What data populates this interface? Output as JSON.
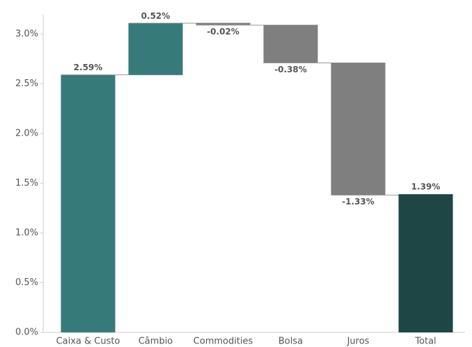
{
  "chart_data": {
    "type": "waterfall",
    "categories": [
      "Caixa & Custo",
      "Câmbio",
      "Commodities",
      "Bolsa",
      "Juros",
      "Total"
    ],
    "values": [
      2.59,
      0.52,
      -0.02,
      -0.38,
      -1.33,
      1.39
    ],
    "value_labels": [
      "2.59%",
      "0.52%",
      "-0.02%",
      "-0.38%",
      "-1.33%",
      "1.39%"
    ],
    "is_total": [
      false,
      false,
      false,
      false,
      false,
      true
    ],
    "colors": {
      "increase": "#367b79",
      "decrease": "#7f7f7f",
      "total": "#1e4645"
    },
    "ylim": [
      0,
      3.2
    ],
    "yticks": [
      {
        "value": 0,
        "label": "0.0%"
      },
      {
        "value": 0.5,
        "label": "0.5%"
      },
      {
        "value": 1,
        "label": "1.0%"
      },
      {
        "value": 1.5,
        "label": "1.5%"
      },
      {
        "value": 2,
        "label": "2.0%"
      },
      {
        "value": 2.5,
        "label": "2.5%"
      },
      {
        "value": 3,
        "label": "3.0%"
      }
    ]
  }
}
